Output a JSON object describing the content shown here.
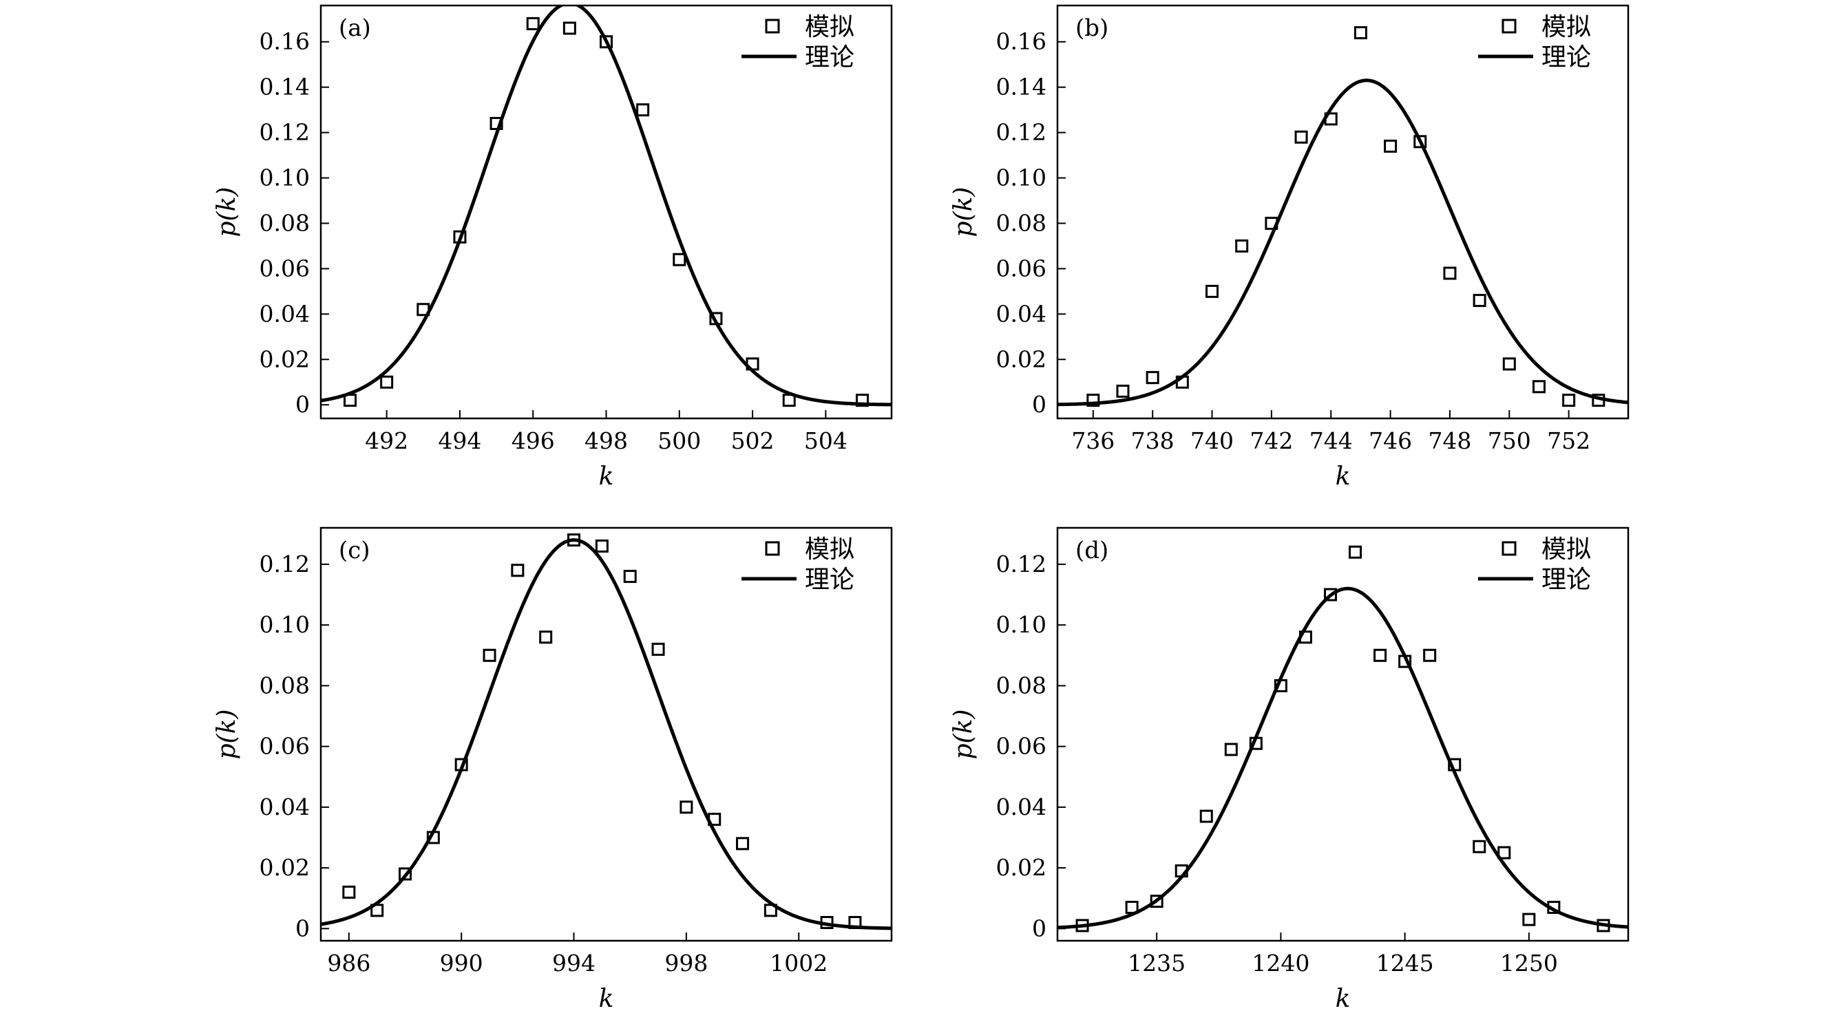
{
  "chart_data": [
    {
      "type": "scatter+line",
      "panel_label": "(a)",
      "xlabel": "k",
      "ylabel": "p(k)",
      "xlim": [
        490.2,
        505.8
      ],
      "ylim": [
        -0.006,
        0.176
      ],
      "xticks": [
        492,
        494,
        496,
        498,
        500,
        502,
        504
      ],
      "yticks": [
        0,
        0.02,
        0.04,
        0.06,
        0.08,
        0.1,
        0.12,
        0.14,
        0.16
      ],
      "ytick_labels": [
        "0",
        "0.02",
        "0.04",
        "0.06",
        "0.08",
        "0.10",
        "0.12",
        "0.14",
        "0.16"
      ],
      "legend": {
        "position": "top-right",
        "entries": [
          "模拟",
          "理论"
        ]
      },
      "series": [
        {
          "name": "模拟",
          "kind": "scatter",
          "marker": "open-square",
          "x": [
            491,
            492,
            493,
            494,
            495,
            496,
            497,
            498,
            499,
            500,
            501,
            502,
            503,
            505
          ],
          "y": [
            0.002,
            0.01,
            0.042,
            0.074,
            0.124,
            0.168,
            0.166,
            0.16,
            0.13,
            0.064,
            0.038,
            0.018,
            0.002,
            0.002
          ]
        },
        {
          "name": "理论",
          "kind": "line",
          "model": "gaussian",
          "mean": 497.0,
          "sigma": 2.25,
          "peak": 0.177
        }
      ]
    },
    {
      "type": "scatter+line",
      "panel_label": "(b)",
      "xlabel": "k",
      "ylabel": "p(k)",
      "xlim": [
        734.8,
        754.0
      ],
      "ylim": [
        -0.006,
        0.176
      ],
      "xticks": [
        736,
        738,
        740,
        742,
        744,
        746,
        748,
        750,
        752
      ],
      "yticks": [
        0,
        0.02,
        0.04,
        0.06,
        0.08,
        0.1,
        0.12,
        0.14,
        0.16
      ],
      "ytick_labels": [
        "0",
        "0.02",
        "0.04",
        "0.06",
        "0.08",
        "0.10",
        "0.12",
        "0.14",
        "0.16"
      ],
      "legend": {
        "position": "top-right",
        "entries": [
          "模拟",
          "理论"
        ]
      },
      "series": [
        {
          "name": "模拟",
          "kind": "scatter",
          "marker": "open-square",
          "x": [
            736,
            737,
            738,
            739,
            740,
            741,
            742,
            743,
            744,
            745,
            746,
            747,
            748,
            749,
            750,
            751,
            752,
            753
          ],
          "y": [
            0.002,
            0.006,
            0.012,
            0.01,
            0.05,
            0.07,
            0.08,
            0.118,
            0.126,
            0.164,
            0.114,
            0.116,
            0.058,
            0.046,
            0.018,
            0.008,
            0.002,
            0.002
          ]
        },
        {
          "name": "理论",
          "kind": "line",
          "model": "gaussian",
          "mean": 745.2,
          "sigma": 2.8,
          "peak": 0.143
        }
      ]
    },
    {
      "type": "scatter+line",
      "panel_label": "(c)",
      "xlabel": "k",
      "ylabel": "p(k)",
      "xlim": [
        985.0,
        1005.3
      ],
      "ylim": [
        -0.004,
        0.132
      ],
      "xticks": [
        986,
        990,
        994,
        998,
        1002
      ],
      "yticks": [
        0,
        0.02,
        0.04,
        0.06,
        0.08,
        0.1,
        0.12
      ],
      "ytick_labels": [
        "0",
        "0.02",
        "0.04",
        "0.06",
        "0.08",
        "0.10",
        "0.12"
      ],
      "legend": {
        "position": "top-right",
        "entries": [
          "模拟",
          "理论"
        ]
      },
      "series": [
        {
          "name": "模拟",
          "kind": "scatter",
          "marker": "open-square",
          "x": [
            986,
            987,
            988,
            989,
            990,
            991,
            992,
            993,
            994,
            995,
            996,
            997,
            998,
            999,
            1000,
            1001,
            1003,
            1004
          ],
          "y": [
            0.012,
            0.006,
            0.018,
            0.03,
            0.054,
            0.09,
            0.118,
            0.096,
            0.128,
            0.126,
            0.116,
            0.092,
            0.04,
            0.036,
            0.028,
            0.006,
            0.002,
            0.002
          ]
        },
        {
          "name": "理论",
          "kind": "line",
          "model": "gaussian",
          "mean": 994.0,
          "sigma": 3.0,
          "peak": 0.128
        }
      ]
    },
    {
      "type": "scatter+line",
      "panel_label": "(d)",
      "xlabel": "k",
      "ylabel": "p(k)",
      "xlim": [
        1231.0,
        1254.0
      ],
      "ylim": [
        -0.004,
        0.132
      ],
      "xticks": [
        1235,
        1240,
        1245,
        1250
      ],
      "yticks": [
        0,
        0.02,
        0.04,
        0.06,
        0.08,
        0.1,
        0.12
      ],
      "ytick_labels": [
        "0",
        "0.02",
        "0.04",
        "0.06",
        "0.08",
        "0.10",
        "0.12"
      ],
      "legend": {
        "position": "top-right",
        "entries": [
          "模拟",
          "理论"
        ]
      },
      "series": [
        {
          "name": "模拟",
          "kind": "scatter",
          "marker": "open-square",
          "x": [
            1232,
            1234,
            1235,
            1236,
            1237,
            1238,
            1239,
            1240,
            1241,
            1242,
            1243,
            1244,
            1245,
            1246,
            1247,
            1248,
            1249,
            1250,
            1251,
            1253
          ],
          "y": [
            0.001,
            0.007,
            0.009,
            0.019,
            0.037,
            0.059,
            0.061,
            0.08,
            0.096,
            0.11,
            0.124,
            0.09,
            0.088,
            0.09,
            0.054,
            0.027,
            0.025,
            0.003,
            0.007,
            0.001
          ]
        },
        {
          "name": "理论",
          "kind": "line",
          "model": "gaussian",
          "mean": 1242.7,
          "sigma": 3.45,
          "peak": 0.112
        }
      ]
    }
  ]
}
